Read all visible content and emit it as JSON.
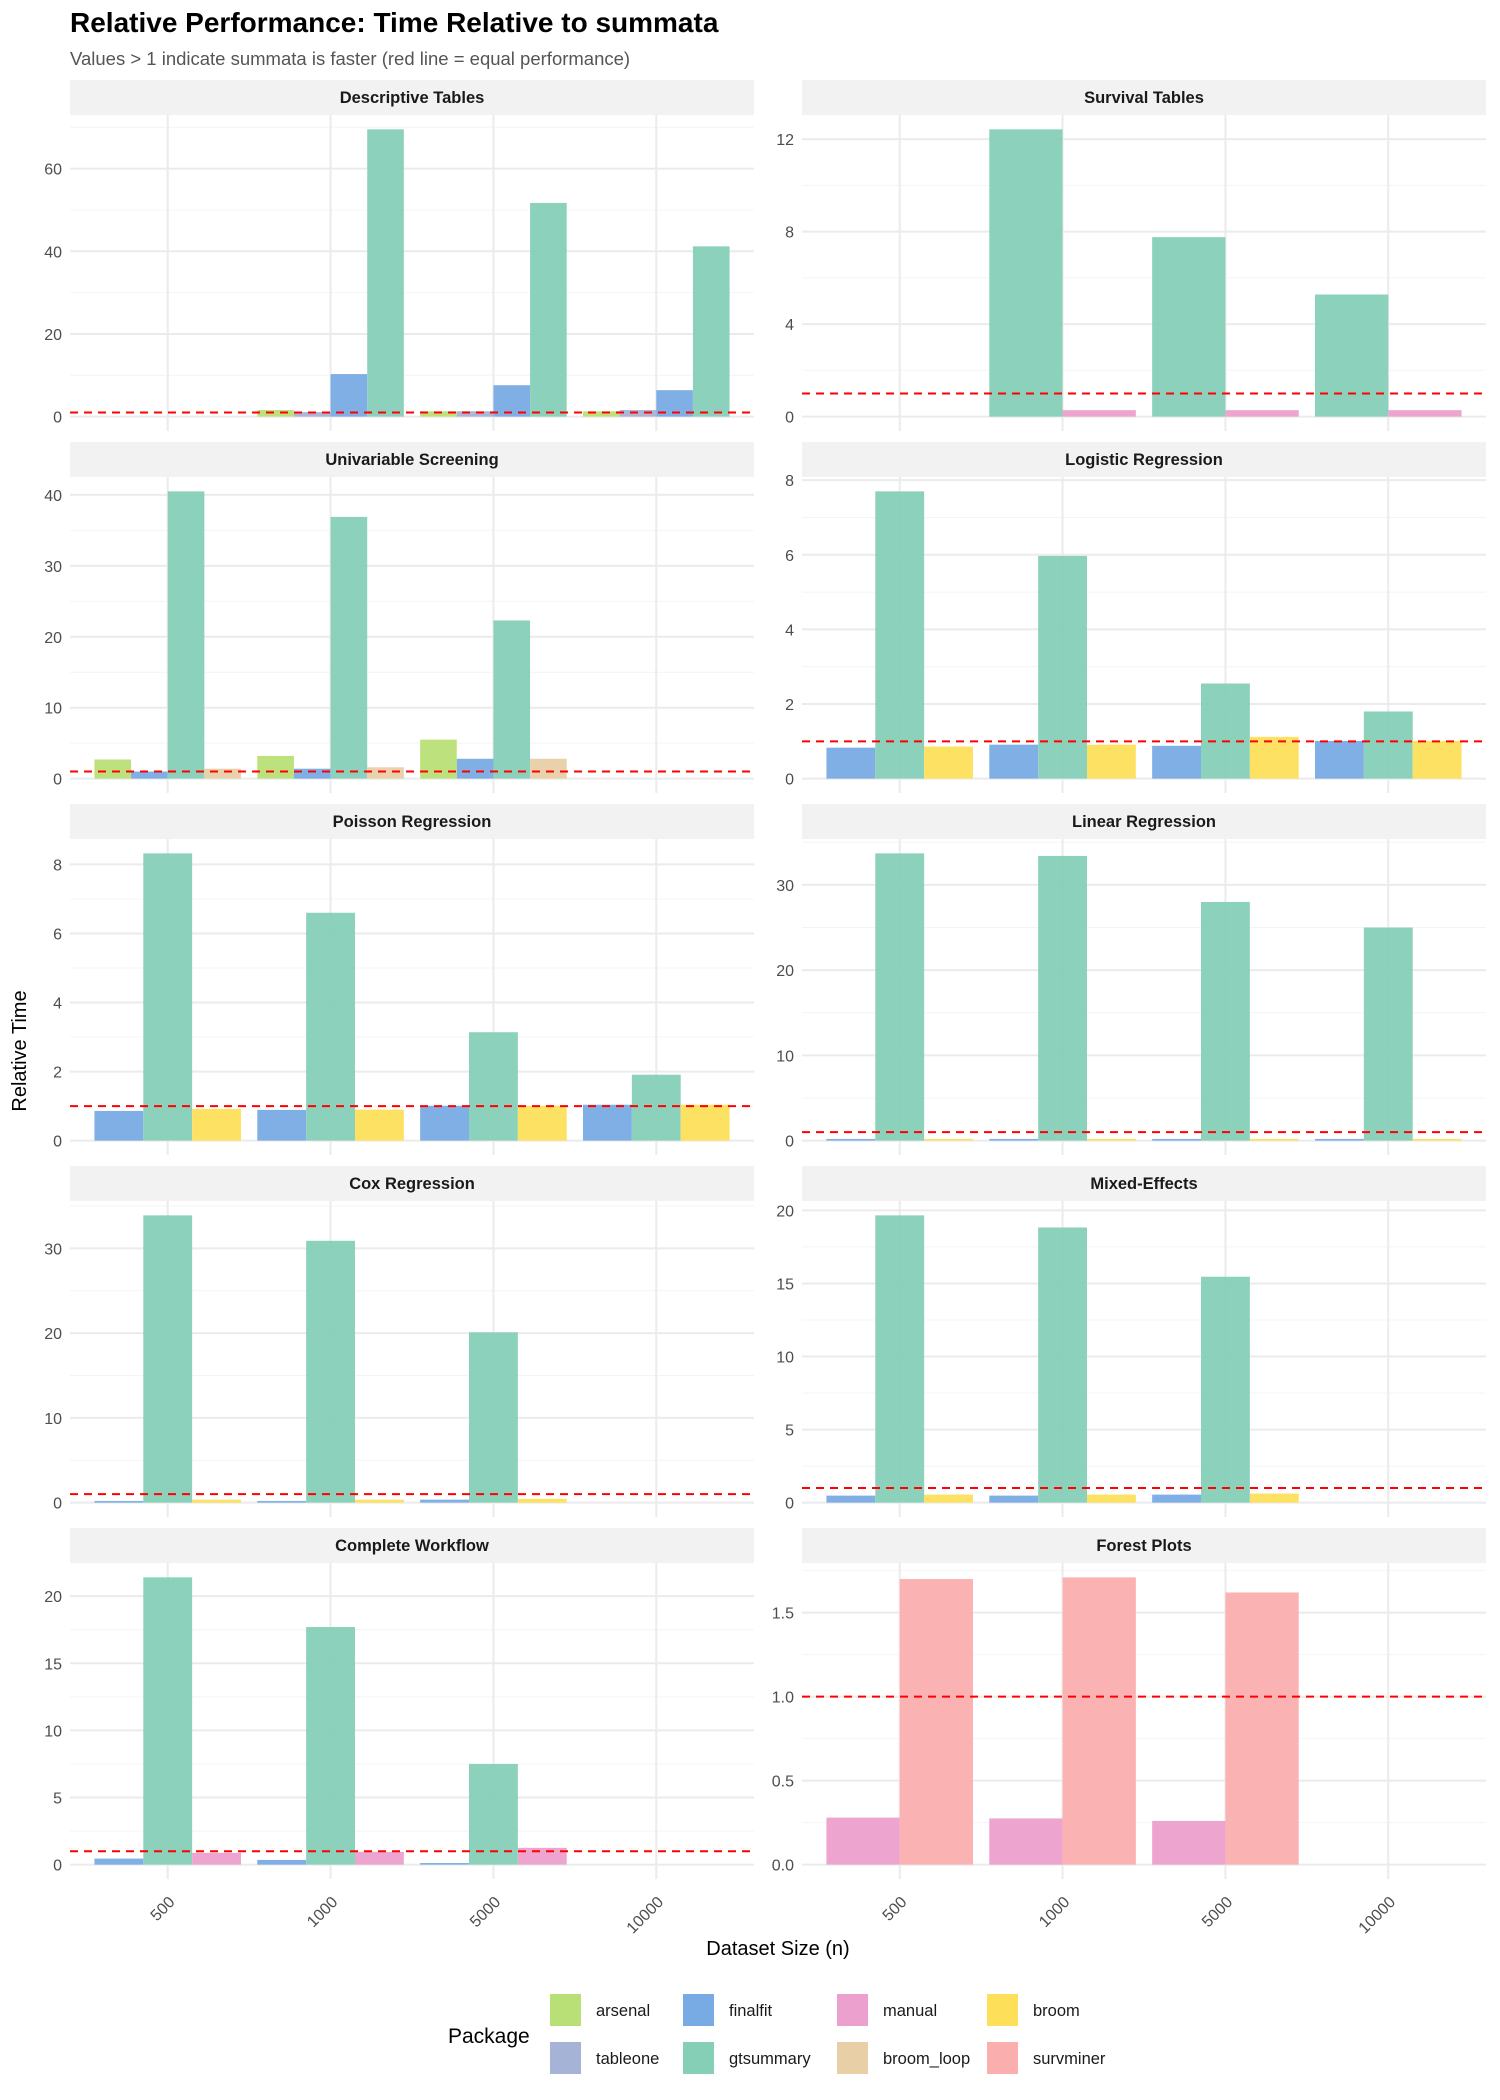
{
  "chart_data": {
    "type": "bar",
    "title": "Relative Performance: Time Relative to summata",
    "subtitle": "Values > 1 indicate summata is faster (red line = equal performance)",
    "xlabel": "Dataset Size (n)",
    "ylabel": "Relative Time",
    "categories": [
      "500",
      "1000",
      "5000",
      "10000"
    ],
    "reference_line": {
      "y": 1,
      "style": "dashed",
      "color": "#ff0000"
    },
    "grid": true,
    "legend": {
      "title": "Package",
      "position": "bottom",
      "entries": [
        {
          "name": "arsenal",
          "color": "#b9e076"
        },
        {
          "name": "finalfit",
          "color": "#78abe3"
        },
        {
          "name": "manual",
          "color": "#eca0ce"
        },
        {
          "name": "broom",
          "color": "#fddf5a"
        },
        {
          "name": "tableone",
          "color": "#a5b3d6"
        },
        {
          "name": "gtsummary",
          "color": "#86cfb7"
        },
        {
          "name": "broom_loop",
          "color": "#e8cfa6"
        },
        {
          "name": "survminer",
          "color": "#faaeae"
        }
      ]
    },
    "panels": [
      {
        "title": "Descriptive Tables",
        "yticks": [
          0,
          20,
          40,
          60
        ],
        "ytick_labels": [
          "0",
          "20",
          "40",
          "60"
        ],
        "packages": [
          "arsenal",
          "tableone",
          "finalfit",
          "gtsummary"
        ],
        "series": [
          {
            "name": "arsenal",
            "values": [
              null,
              1.6,
              1.3,
              1.3
            ]
          },
          {
            "name": "tableone",
            "values": [
              null,
              1.1,
              1.3,
              1.6
            ]
          },
          {
            "name": "finalfit",
            "values": [
              null,
              10.3,
              7.6,
              6.4
            ]
          },
          {
            "name": "gtsummary",
            "values": [
              null,
              69.5,
              51.7,
              41.2
            ]
          }
        ]
      },
      {
        "title": "Survival Tables",
        "yticks": [
          0,
          4,
          8,
          12
        ],
        "ytick_labels": [
          "0",
          "4",
          "8",
          "12"
        ],
        "packages": [
          "gtsummary",
          "manual"
        ],
        "series": [
          {
            "name": "gtsummary",
            "values": [
              null,
              12.42,
              7.76,
              5.28
            ]
          },
          {
            "name": "manual",
            "values": [
              null,
              0.28,
              0.28,
              0.28
            ]
          }
        ]
      },
      {
        "title": "Univariable Screening",
        "yticks": [
          0,
          10,
          20,
          30,
          40
        ],
        "ytick_labels": [
          "0",
          "10",
          "20",
          "30",
          "40"
        ],
        "packages": [
          "arsenal",
          "finalfit",
          "gtsummary",
          "broom_loop"
        ],
        "series": [
          {
            "name": "arsenal",
            "values": [
              2.7,
              3.2,
              5.5,
              null
            ]
          },
          {
            "name": "finalfit",
            "values": [
              1.0,
              1.4,
              2.8,
              null
            ]
          },
          {
            "name": "gtsummary",
            "values": [
              40.5,
              36.9,
              22.3,
              null
            ]
          },
          {
            "name": "broom_loop",
            "values": [
              1.4,
              1.6,
              2.8,
              null
            ]
          }
        ]
      },
      {
        "title": "Logistic Regression",
        "yticks": [
          0,
          2,
          4,
          6,
          8
        ],
        "ytick_labels": [
          "0",
          "2",
          "4",
          "6",
          "8"
        ],
        "packages": [
          "finalfit",
          "gtsummary",
          "broom"
        ],
        "series": [
          {
            "name": "finalfit",
            "values": [
              0.83,
              0.91,
              0.88,
              1.01
            ]
          },
          {
            "name": "gtsummary",
            "values": [
              7.7,
              5.97,
              2.55,
              1.8
            ]
          },
          {
            "name": "broom",
            "values": [
              0.86,
              0.91,
              1.12,
              1.01
            ]
          }
        ]
      },
      {
        "title": "Poisson Regression",
        "yticks": [
          0,
          2,
          4,
          6,
          8
        ],
        "ytick_labels": [
          "0",
          "2",
          "4",
          "6",
          "8"
        ],
        "packages": [
          "finalfit",
          "gtsummary",
          "broom"
        ],
        "series": [
          {
            "name": "finalfit",
            "values": [
              0.86,
              0.89,
              1.01,
              1.04
            ]
          },
          {
            "name": "gtsummary",
            "values": [
              8.32,
              6.6,
              3.14,
              1.91
            ]
          },
          {
            "name": "broom",
            "values": [
              0.92,
              0.9,
              1.01,
              1.04
            ]
          }
        ]
      },
      {
        "title": "Linear Regression",
        "yticks": [
          0,
          10,
          20,
          30
        ],
        "ytick_labels": [
          "0",
          "10",
          "20",
          "30"
        ],
        "packages": [
          "finalfit",
          "gtsummary",
          "broom"
        ],
        "series": [
          {
            "name": "finalfit",
            "values": [
              0.2,
              0.2,
              0.2,
              0.2
            ]
          },
          {
            "name": "gtsummary",
            "values": [
              33.7,
              33.4,
              28.0,
              25.0
            ]
          },
          {
            "name": "broom",
            "values": [
              0.2,
              0.2,
              0.2,
              0.2
            ]
          }
        ]
      },
      {
        "title": "Cox Regression",
        "yticks": [
          0,
          10,
          20,
          30
        ],
        "ytick_labels": [
          "0",
          "10",
          "20",
          "30"
        ],
        "packages": [
          "finalfit",
          "gtsummary",
          "broom"
        ],
        "series": [
          {
            "name": "finalfit",
            "values": [
              0.2,
              0.2,
              0.35,
              null
            ]
          },
          {
            "name": "gtsummary",
            "values": [
              33.9,
              30.9,
              20.1,
              null
            ]
          },
          {
            "name": "broom",
            "values": [
              0.35,
              0.35,
              0.45,
              null
            ]
          }
        ]
      },
      {
        "title": "Mixed-Effects",
        "yticks": [
          0,
          5,
          10,
          15,
          20
        ],
        "ytick_labels": [
          "0",
          "5",
          "10",
          "15",
          "20"
        ],
        "packages": [
          "finalfit",
          "gtsummary",
          "broom"
        ],
        "series": [
          {
            "name": "finalfit",
            "values": [
              0.48,
              0.48,
              0.55,
              null
            ]
          },
          {
            "name": "gtsummary",
            "values": [
              19.66,
              18.83,
              15.46,
              null
            ]
          },
          {
            "name": "broom",
            "values": [
              0.55,
              0.55,
              0.62,
              null
            ]
          }
        ]
      },
      {
        "title": "Complete Workflow",
        "yticks": [
          0,
          5,
          10,
          15,
          20
        ],
        "ytick_labels": [
          "0",
          "5",
          "10",
          "15",
          "20"
        ],
        "packages": [
          "finalfit",
          "gtsummary",
          "manual"
        ],
        "series": [
          {
            "name": "finalfit",
            "values": [
              0.45,
              0.35,
              0.12,
              null
            ]
          },
          {
            "name": "gtsummary",
            "values": [
              21.4,
              17.7,
              7.5,
              null
            ]
          },
          {
            "name": "manual",
            "values": [
              0.88,
              0.95,
              1.25,
              null
            ]
          }
        ]
      },
      {
        "title": "Forest Plots",
        "yticks": [
          0,
          0.5,
          1.0,
          1.5
        ],
        "ytick_labels": [
          "0.0",
          "0.5",
          "1.0",
          "1.5"
        ],
        "packages": [
          "manual",
          "survminer"
        ],
        "series": [
          {
            "name": "manual",
            "values": [
              0.28,
              0.275,
              0.26,
              null
            ]
          },
          {
            "name": "survminer",
            "values": [
              1.7,
              1.71,
              1.62,
              null
            ]
          }
        ]
      }
    ]
  }
}
